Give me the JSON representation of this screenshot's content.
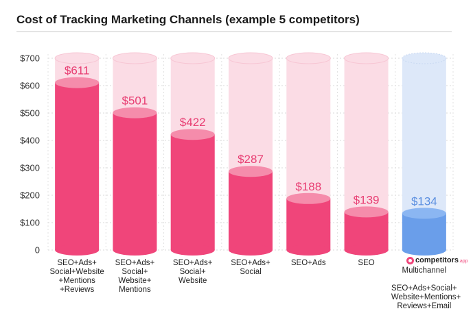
{
  "chart_data": {
    "type": "bar",
    "title": "Cost of Tracking Marketing Channels (example 5 competitors)",
    "ylim": [
      0,
      700
    ],
    "yticks": [
      0,
      100,
      200,
      300,
      400,
      500,
      600,
      700
    ],
    "ytick_labels": [
      "0",
      "$100",
      "$200",
      "$300",
      "$400",
      "$500",
      "$600",
      "$700"
    ],
    "categories": [
      "SEO+Ads+\nSocial+Website\n+Mentions\n+Reviews",
      "SEO+Ads+\nSocial+\nWebsite+\nMentions",
      "SEO+Ads+\nSocial+\nWebsite",
      "SEO+Ads+\nSocial",
      "SEO+Ads",
      "SEO",
      "Multichannel\n\nSEO+Ads+Social+\nWebsite+Mentions+\nReviews+Email"
    ],
    "values": [
      611,
      501,
      422,
      287,
      188,
      139,
      134
    ],
    "value_labels": [
      "$611",
      "$501",
      "$422",
      "$287",
      "$188",
      "$139",
      "$134"
    ],
    "highlight_index": 6,
    "colors": {
      "bar": "#f0457a",
      "bar_top": "#f58cab",
      "bg_cylinder": "#fbdce5",
      "label": "#e83d72",
      "highlight_bar": "#6a9eea",
      "highlight_top": "#8bb6f2",
      "highlight_bg": "#dde8f9",
      "highlight_label": "#5b8fe0"
    }
  },
  "brand": {
    "name": "competitors",
    "suffix": ".app"
  }
}
